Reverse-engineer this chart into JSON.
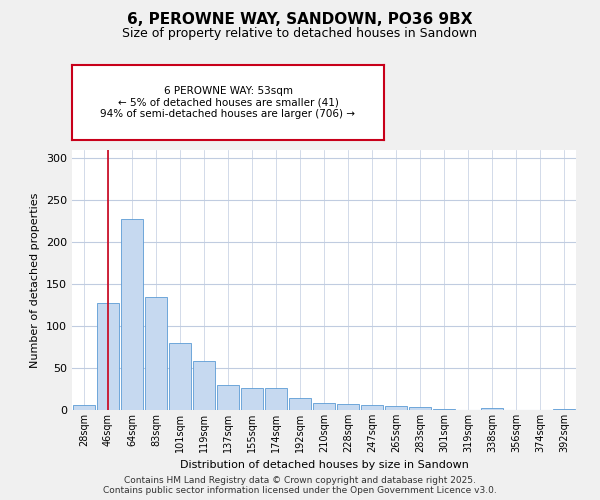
{
  "title": "6, PEROWNE WAY, SANDOWN, PO36 9BX",
  "subtitle": "Size of property relative to detached houses in Sandown",
  "xlabel": "Distribution of detached houses by size in Sandown",
  "ylabel": "Number of detached properties",
  "categories": [
    "28sqm",
    "46sqm",
    "64sqm",
    "83sqm",
    "101sqm",
    "119sqm",
    "137sqm",
    "155sqm",
    "174sqm",
    "192sqm",
    "210sqm",
    "228sqm",
    "247sqm",
    "265sqm",
    "283sqm",
    "301sqm",
    "319sqm",
    "338sqm",
    "356sqm",
    "374sqm",
    "392sqm"
  ],
  "values": [
    6,
    128,
    228,
    135,
    80,
    58,
    30,
    26,
    26,
    14,
    8,
    7,
    6,
    5,
    3,
    1,
    0,
    2,
    0,
    0,
    1
  ],
  "bar_color_normal": "#c6d9f0",
  "bar_edge_color": "#5b9bd5",
  "bar_color_highlight": "#c8001a",
  "highlight_index": 1,
  "annotation_text": "6 PEROWNE WAY: 53sqm\n← 5% of detached houses are smaller (41)\n94% of semi-detached houses are larger (706) →",
  "annotation_box_color": "#c8001a",
  "vline_x": 1,
  "ylim": [
    0,
    310
  ],
  "yticks": [
    0,
    50,
    100,
    150,
    200,
    250,
    300
  ],
  "footer_text": "Contains HM Land Registry data © Crown copyright and database right 2025.\nContains public sector information licensed under the Open Government Licence v3.0.",
  "background_color": "#f0f0f0",
  "plot_background_color": "#ffffff",
  "grid_color": "#c0cce0",
  "title_fontsize": 11,
  "subtitle_fontsize": 9,
  "tick_fontsize": 7,
  "ylabel_fontsize": 8,
  "xlabel_fontsize": 8,
  "footer_fontsize": 6.5,
  "annotation_fontsize": 7.5
}
